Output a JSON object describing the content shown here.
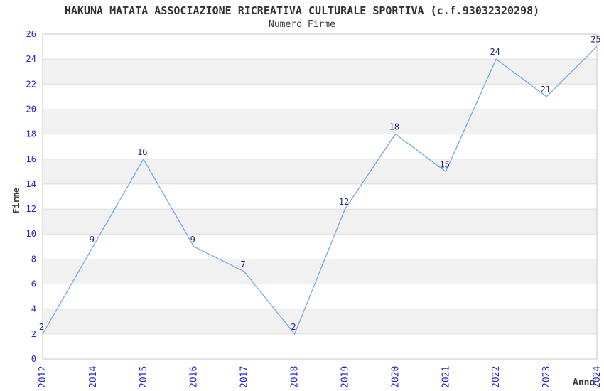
{
  "chart_data": {
    "type": "line",
    "title": "HAKUNA MATATA ASSOCIAZIONE RICREATIVA CULTURALE SPORTIVA (c.f.93032320298)",
    "subtitle": "Numero Firme",
    "xlabel": "Anno",
    "ylabel": "Firme",
    "x": [
      "2012",
      "2014",
      "2015",
      "2016",
      "2017",
      "2018",
      "2019",
      "2020",
      "2021",
      "2022",
      "2023",
      "2024"
    ],
    "values": [
      2,
      9,
      16,
      9,
      7,
      2,
      12,
      18,
      15,
      24,
      21,
      25
    ],
    "ylim": [
      0,
      26
    ],
    "ytick_step": 2,
    "grid": true,
    "legend": "none",
    "colors": {
      "line": "#74a9e4",
      "band": "#f1f1f1",
      "grid": "#dcdcdc",
      "border": "#c6c6c6",
      "tick_label": "#2424cc",
      "data_label": "#24247c",
      "text": "#3d3d3d"
    }
  }
}
